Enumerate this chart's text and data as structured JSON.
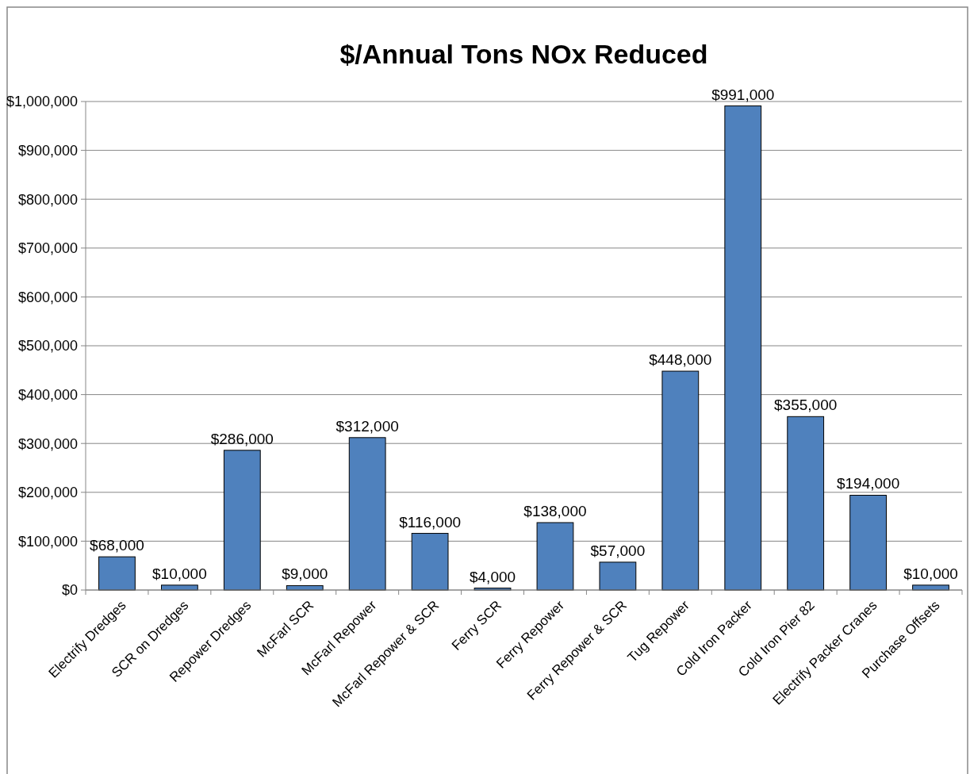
{
  "chart_data": {
    "type": "bar",
    "title": "$/Annual Tons NOx Reduced",
    "categories": [
      "Electrify Dredges",
      "SCR on Dredges",
      "Repower Dredges",
      "McFarl SCR",
      "McFarl Repower",
      "McFarl Repower & SCR",
      "Ferry SCR",
      "Ferry Repower",
      "Ferry Repower & SCR",
      "Tug Repower",
      "Cold Iron Packer",
      "Cold Iron Pier 82",
      "Electrify Packer Cranes",
      "Purchase Offsets"
    ],
    "values": [
      68000,
      10000,
      286000,
      9000,
      312000,
      116000,
      4000,
      138000,
      57000,
      448000,
      991000,
      355000,
      194000,
      10000
    ],
    "value_labels": [
      "$68,000",
      "$10,000",
      "$286,000",
      "$9,000",
      "$312,000",
      "$116,000",
      "$4,000",
      "$138,000",
      "$57,000",
      "$448,000",
      "$991,000",
      "$355,000",
      "$194,000",
      "$10,000"
    ],
    "color": "#4f81bd",
    "ylim": [
      0,
      1000000
    ],
    "yticks": [
      {
        "value": 0,
        "label": "$0"
      },
      {
        "value": 100000,
        "label": "$100,000"
      },
      {
        "value": 200000,
        "label": "$200,000"
      },
      {
        "value": 300000,
        "label": "$300,000"
      },
      {
        "value": 400000,
        "label": "$400,000"
      },
      {
        "value": 500000,
        "label": "$500,000"
      },
      {
        "value": 600000,
        "label": "$600,000"
      },
      {
        "value": 700000,
        "label": "$700,000"
      },
      {
        "value": 800000,
        "label": "$800,000"
      },
      {
        "value": 900000,
        "label": "$900,000"
      },
      {
        "value": 1000000,
        "label": "$1,000,000"
      }
    ],
    "grid": "y"
  }
}
